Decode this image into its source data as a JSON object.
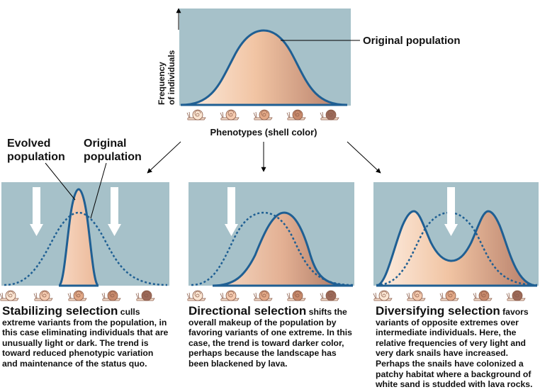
{
  "top": {
    "y_axis_label_line1": "Frequency",
    "y_axis_label_line2": "of individuals",
    "curve_label": "Original population",
    "x_axis_label": "Phenotypes (shell color)"
  },
  "stabilizing": {
    "label_evolved_line1": "Evolved",
    "label_evolved_line2": "population",
    "label_original_line1": "Original",
    "label_original_line2": "population",
    "title": "Stabilizing selection",
    "text": " culls extreme variants from the population, in this case eliminating individuals that are unusually light or dark. The trend is toward reduced phenotypic variation and maintenance of the status quo."
  },
  "directional": {
    "title": "Directional selection",
    "text": " shifts the overall makeup of the population by favoring variants of one extreme. In this case, the trend is toward darker color, perhaps because the landscape has been blackened by lava."
  },
  "diversifying": {
    "title": "Diversifying selection",
    "text": " favors variants of opposite extremes over intermediate individuals. Here, the relative frequencies of very light and very dark snails have increased. Perhaps the snails have colonized a patchy habitat where a background of white sand is studded with lava rocks."
  },
  "colors": {
    "panel_background": "#a6c1c9",
    "curve_stroke": "#1f5f93",
    "fill_light": "#f8dcc6",
    "fill_mid": "#ecb896",
    "fill_dark": "#b67e68",
    "arrow_fill": "#ffffff",
    "snail_shell_colors": [
      "#fbe6d3",
      "#f5cbb0",
      "#e3a987",
      "#c88a6c",
      "#9c6a5a"
    ]
  },
  "icons": [
    "snail-icon",
    "selection-arrow-icon",
    "flow-arrow-icon"
  ]
}
